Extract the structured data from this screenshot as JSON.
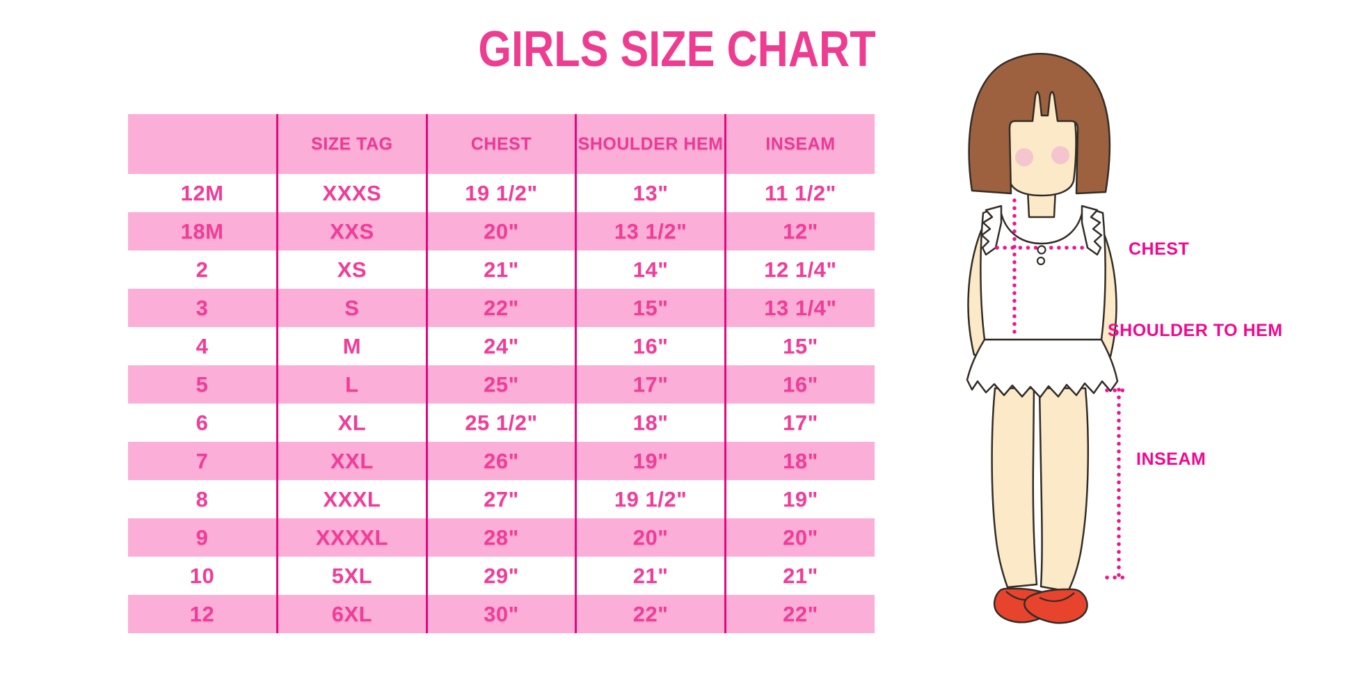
{
  "title": "GIRLS SIZE CHART",
  "chart_data": {
    "type": "table",
    "title": "GIRLS SIZE CHART",
    "columns": [
      "",
      "SIZE TAG",
      "CHEST",
      "SHOULDER HEM",
      "INSEAM"
    ],
    "rows": [
      [
        "12M",
        "XXXS",
        "19 1/2\"",
        "13\"",
        "11 1/2\""
      ],
      [
        "18M",
        "XXS",
        "20\"",
        "13 1/2\"",
        "12\""
      ],
      [
        "2",
        "XS",
        "21\"",
        "14\"",
        "12 1/4\""
      ],
      [
        "3",
        "S",
        "22\"",
        "15\"",
        "13 1/4\""
      ],
      [
        "4",
        "M",
        "24\"",
        "16\"",
        "15\""
      ],
      [
        "5",
        "L",
        "25\"",
        "17\"",
        "16\""
      ],
      [
        "6",
        "XL",
        "25 1/2\"",
        "18\"",
        "17\""
      ],
      [
        "7",
        "XXL",
        "26\"",
        "19\"",
        "18\""
      ],
      [
        "8",
        "XXXL",
        "27\"",
        "19 1/2\"",
        "19\""
      ],
      [
        "9",
        "XXXXL",
        "28\"",
        "20\"",
        "20\""
      ],
      [
        "10",
        "5XL",
        "29\"",
        "21\"",
        "21\""
      ],
      [
        "12",
        "6XL",
        "30\"",
        "22\"",
        "22\""
      ]
    ],
    "layout": {
      "striped": true,
      "stripe_order": "white-first",
      "grid": "vertical-only"
    }
  },
  "diagram": {
    "figure": "toddler-girl-illustration",
    "labels": {
      "chest": "CHEST",
      "shoulder_to_hem": "SHOULDER TO HEM",
      "inseam": "INSEAM"
    }
  },
  "colors": {
    "accent_pink": "#EE3C90",
    "band_pink": "#FBAED7",
    "grid_line": "#E3067E",
    "table_text": "#EF3D98",
    "label_magenta": "#F2078E",
    "dot_line": "#EC1690",
    "hair_brown": "#9D6140",
    "skin": "#FBE9C8",
    "cheek": "#F4C5CF",
    "shoe_red": "#E8432C"
  }
}
